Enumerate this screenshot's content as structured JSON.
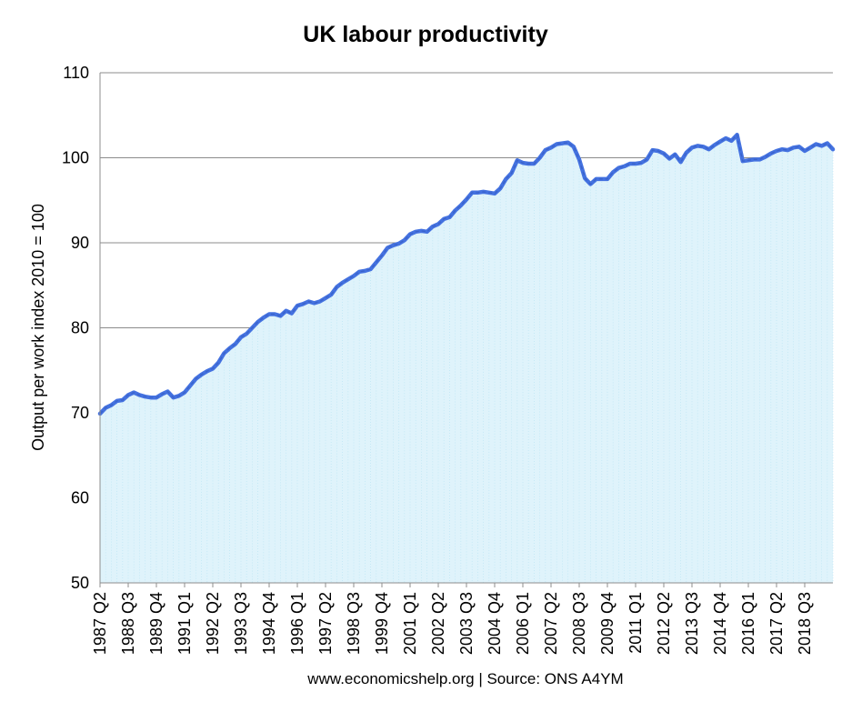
{
  "chart_data": {
    "type": "area",
    "title": "UK labour productivity",
    "ylabel": "Output per work index 2010 = 100",
    "xlabel": "",
    "source": "www.economicshelp.org | Source: ONS A4YM",
    "ylim": [
      50,
      110
    ],
    "yticks": [
      50,
      60,
      70,
      80,
      90,
      100,
      110
    ],
    "grid": true,
    "legend": "none",
    "line_color": "#4472e0",
    "fill_color": "#dff3fb",
    "x_start": "1987 Q2",
    "x_end": "2019 Q4",
    "x_tick_labels": [
      "1987 Q2",
      "1988 Q3",
      "1989 Q4",
      "1991 Q1",
      "1992 Q2",
      "1993 Q3",
      "1994 Q4",
      "1996 Q1",
      "1997 Q2",
      "1998 Q3",
      "1999 Q4",
      "2001 Q1",
      "2002 Q2",
      "2003 Q3",
      "2004 Q4",
      "2006 Q1",
      "2007 Q2",
      "2008 Q3",
      "2009 Q4",
      "2011 Q1",
      "2012 Q2",
      "2013 Q3",
      "2014 Q4",
      "2016 Q1",
      "2017 Q2",
      "2018 Q3"
    ],
    "series": [
      {
        "values": [
          {
            "x": "1987 Q2",
            "y": 69.9
          },
          {
            "x": "1987 Q3",
            "y": 70.6
          },
          {
            "x": "1987 Q4",
            "y": 70.9
          },
          {
            "x": "1988 Q1",
            "y": 71.4
          },
          {
            "x": "1988 Q2",
            "y": 71.5
          },
          {
            "x": "1988 Q3",
            "y": 72.1
          },
          {
            "x": "1988 Q4",
            "y": 72.4
          },
          {
            "x": "1989 Q1",
            "y": 72.1
          },
          {
            "x": "1989 Q2",
            "y": 71.9
          },
          {
            "x": "1989 Q3",
            "y": 71.8
          },
          {
            "x": "1989 Q4",
            "y": 71.8
          },
          {
            "x": "1990 Q1",
            "y": 72.2
          },
          {
            "x": "1990 Q2",
            "y": 72.5
          },
          {
            "x": "1990 Q3",
            "y": 71.8
          },
          {
            "x": "1990 Q4",
            "y": 72.0
          },
          {
            "x": "1991 Q1",
            "y": 72.4
          },
          {
            "x": "1991 Q2",
            "y": 73.2
          },
          {
            "x": "1991 Q3",
            "y": 74.0
          },
          {
            "x": "1991 Q4",
            "y": 74.5
          },
          {
            "x": "1992 Q1",
            "y": 74.9
          },
          {
            "x": "1992 Q2",
            "y": 75.2
          },
          {
            "x": "1992 Q3",
            "y": 75.9
          },
          {
            "x": "1992 Q4",
            "y": 77.0
          },
          {
            "x": "1993 Q1",
            "y": 77.6
          },
          {
            "x": "1993 Q2",
            "y": 78.1
          },
          {
            "x": "1993 Q3",
            "y": 78.9
          },
          {
            "x": "1993 Q4",
            "y": 79.3
          },
          {
            "x": "1994 Q1",
            "y": 80.0
          },
          {
            "x": "1994 Q2",
            "y": 80.7
          },
          {
            "x": "1994 Q3",
            "y": 81.2
          },
          {
            "x": "1994 Q4",
            "y": 81.6
          },
          {
            "x": "1995 Q1",
            "y": 81.6
          },
          {
            "x": "1995 Q2",
            "y": 81.4
          },
          {
            "x": "1995 Q3",
            "y": 82.0
          },
          {
            "x": "1995 Q4",
            "y": 81.7
          },
          {
            "x": "1996 Q1",
            "y": 82.6
          },
          {
            "x": "1996 Q2",
            "y": 82.8
          },
          {
            "x": "1996 Q3",
            "y": 83.1
          },
          {
            "x": "1996 Q4",
            "y": 82.9
          },
          {
            "x": "1997 Q1",
            "y": 83.1
          },
          {
            "x": "1997 Q2",
            "y": 83.5
          },
          {
            "x": "1997 Q3",
            "y": 83.9
          },
          {
            "x": "1997 Q4",
            "y": 84.8
          },
          {
            "x": "1998 Q1",
            "y": 85.3
          },
          {
            "x": "1998 Q2",
            "y": 85.7
          },
          {
            "x": "1998 Q3",
            "y": 86.1
          },
          {
            "x": "1998 Q4",
            "y": 86.6
          },
          {
            "x": "1999 Q1",
            "y": 86.7
          },
          {
            "x": "1999 Q2",
            "y": 86.9
          },
          {
            "x": "1999 Q3",
            "y": 87.7
          },
          {
            "x": "1999 Q4",
            "y": 88.5
          },
          {
            "x": "2000 Q1",
            "y": 89.4
          },
          {
            "x": "2000 Q2",
            "y": 89.7
          },
          {
            "x": "2000 Q3",
            "y": 89.9
          },
          {
            "x": "2000 Q4",
            "y": 90.3
          },
          {
            "x": "2001 Q1",
            "y": 91.0
          },
          {
            "x": "2001 Q2",
            "y": 91.3
          },
          {
            "x": "2001 Q3",
            "y": 91.4
          },
          {
            "x": "2001 Q4",
            "y": 91.3
          },
          {
            "x": "2002 Q1",
            "y": 91.9
          },
          {
            "x": "2002 Q2",
            "y": 92.2
          },
          {
            "x": "2002 Q3",
            "y": 92.8
          },
          {
            "x": "2002 Q4",
            "y": 93.0
          },
          {
            "x": "2003 Q1",
            "y": 93.8
          },
          {
            "x": "2003 Q2",
            "y": 94.4
          },
          {
            "x": "2003 Q3",
            "y": 95.1
          },
          {
            "x": "2003 Q4",
            "y": 95.9
          },
          {
            "x": "2004 Q1",
            "y": 95.9
          },
          {
            "x": "2004 Q2",
            "y": 96.0
          },
          {
            "x": "2004 Q3",
            "y": 95.9
          },
          {
            "x": "2004 Q4",
            "y": 95.8
          },
          {
            "x": "2005 Q1",
            "y": 96.4
          },
          {
            "x": "2005 Q2",
            "y": 97.5
          },
          {
            "x": "2005 Q3",
            "y": 98.2
          },
          {
            "x": "2005 Q4",
            "y": 99.7
          },
          {
            "x": "2006 Q1",
            "y": 99.4
          },
          {
            "x": "2006 Q2",
            "y": 99.3
          },
          {
            "x": "2006 Q3",
            "y": 99.3
          },
          {
            "x": "2006 Q4",
            "y": 100.0
          },
          {
            "x": "2007 Q1",
            "y": 100.9
          },
          {
            "x": "2007 Q2",
            "y": 101.2
          },
          {
            "x": "2007 Q3",
            "y": 101.6
          },
          {
            "x": "2007 Q4",
            "y": 101.7
          },
          {
            "x": "2008 Q1",
            "y": 101.8
          },
          {
            "x": "2008 Q2",
            "y": 101.3
          },
          {
            "x": "2008 Q3",
            "y": 99.8
          },
          {
            "x": "2008 Q4",
            "y": 97.6
          },
          {
            "x": "2009 Q1",
            "y": 96.9
          },
          {
            "x": "2009 Q2",
            "y": 97.5
          },
          {
            "x": "2009 Q3",
            "y": 97.5
          },
          {
            "x": "2009 Q4",
            "y": 97.5
          },
          {
            "x": "2010 Q1",
            "y": 98.3
          },
          {
            "x": "2010 Q2",
            "y": 98.8
          },
          {
            "x": "2010 Q3",
            "y": 99.0
          },
          {
            "x": "2010 Q4",
            "y": 99.3
          },
          {
            "x": "2011 Q1",
            "y": 99.3
          },
          {
            "x": "2011 Q2",
            "y": 99.4
          },
          {
            "x": "2011 Q3",
            "y": 99.8
          },
          {
            "x": "2011 Q4",
            "y": 100.9
          },
          {
            "x": "2012 Q1",
            "y": 100.8
          },
          {
            "x": "2012 Q2",
            "y": 100.5
          },
          {
            "x": "2012 Q3",
            "y": 99.9
          },
          {
            "x": "2012 Q4",
            "y": 100.4
          },
          {
            "x": "2013 Q1",
            "y": 99.5
          },
          {
            "x": "2013 Q2",
            "y": 100.6
          },
          {
            "x": "2013 Q3",
            "y": 101.2
          },
          {
            "x": "2013 Q4",
            "y": 101.4
          },
          {
            "x": "2014 Q1",
            "y": 101.3
          },
          {
            "x": "2014 Q2",
            "y": 101.0
          },
          {
            "x": "2014 Q3",
            "y": 101.5
          },
          {
            "x": "2014 Q4",
            "y": 101.9
          },
          {
            "x": "2015 Q1",
            "y": 102.3
          },
          {
            "x": "2015 Q2",
            "y": 102.0
          },
          {
            "x": "2015 Q3",
            "y": 102.7
          },
          {
            "x": "2015 Q4",
            "y": 99.6
          },
          {
            "x": "2016 Q1",
            "y": 99.7
          },
          {
            "x": "2016 Q2",
            "y": 99.8
          },
          {
            "x": "2016 Q3",
            "y": 99.8
          },
          {
            "x": "2016 Q4",
            "y": 100.1
          },
          {
            "x": "2017 Q1",
            "y": 100.5
          },
          {
            "x": "2017 Q2",
            "y": 100.8
          },
          {
            "x": "2017 Q3",
            "y": 101.0
          },
          {
            "x": "2017 Q4",
            "y": 100.9
          },
          {
            "x": "2018 Q1",
            "y": 101.2
          },
          {
            "x": "2018 Q2",
            "y": 101.3
          },
          {
            "x": "2018 Q3",
            "y": 100.8
          },
          {
            "x": "2018 Q4",
            "y": 101.2
          },
          {
            "x": "2019 Q1",
            "y": 101.6
          },
          {
            "x": "2019 Q2",
            "y": 101.4
          },
          {
            "x": "2019 Q3",
            "y": 101.7
          },
          {
            "x": "2019 Q4",
            "y": 101.0
          }
        ]
      }
    ]
  }
}
